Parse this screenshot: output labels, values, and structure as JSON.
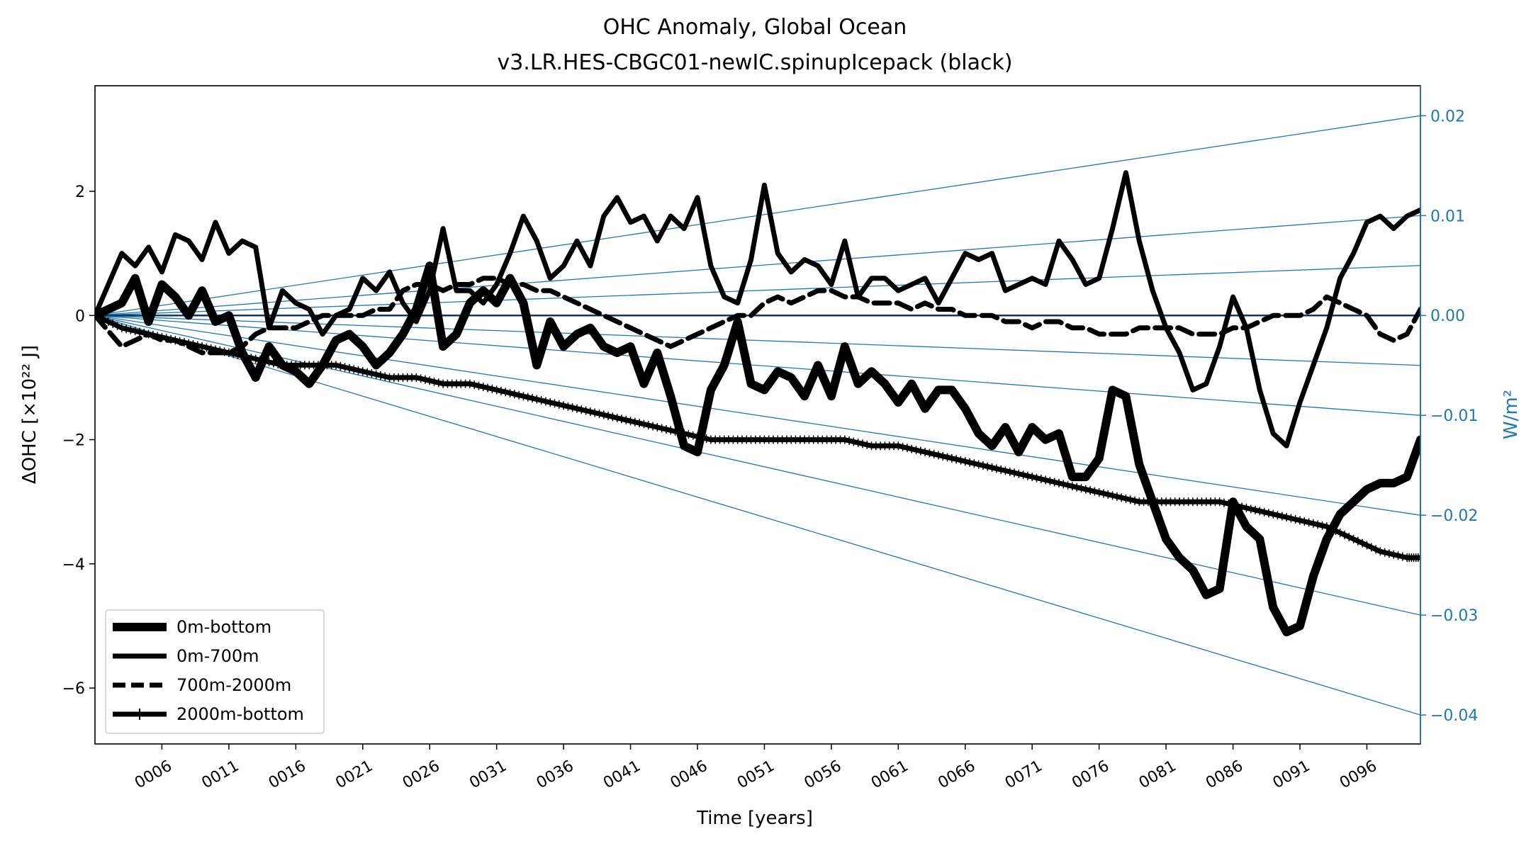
{
  "chart_data": {
    "type": "line",
    "title": "OHC Anomaly, Global Ocean",
    "subtitle": "v3.LR.HES-CBGC01-newIC.spinupIcepack (black)",
    "xlabel": "Time [years]",
    "ylabel": "ΔOHC [×10²² J]",
    "ylabel_right": "W/m²",
    "xlim": [
      1,
      100
    ],
    "ylim": [
      -6.9,
      3.7
    ],
    "ylim_right": [
      -0.0429,
      0.023
    ],
    "x_ticks": [
      6,
      11,
      16,
      21,
      26,
      31,
      36,
      41,
      46,
      51,
      56,
      61,
      66,
      71,
      76,
      81,
      86,
      91,
      96
    ],
    "x_tick_labels": [
      "0006",
      "0011",
      "0016",
      "0021",
      "0026",
      "0031",
      "0036",
      "0041",
      "0046",
      "0051",
      "0056",
      "0061",
      "0066",
      "0071",
      "0076",
      "0081",
      "0086",
      "0091",
      "0096"
    ],
    "y_ticks": [
      -6,
      -4,
      -2,
      0,
      2
    ],
    "y_tick_labels": [
      "−6",
      "−4",
      "−2",
      "0",
      "2"
    ],
    "y_right_ticks": [
      -0.04,
      -0.03,
      -0.02,
      -0.01,
      0.0,
      0.01,
      0.02
    ],
    "y_right_tick_labels": [
      "−0.04",
      "−0.03",
      "−0.02",
      "−0.01",
      "0.00",
      "0.01",
      "0.02"
    ],
    "reference_lines_Wm2": [
      0.02,
      0.01,
      0.005,
      -0.005,
      -0.01,
      -0.02,
      -0.03,
      -0.04
    ],
    "grid": false,
    "legend_position": "lower-left",
    "series": [
      {
        "name": "0m-bottom",
        "style": "solid-thick",
        "x": [
          1,
          3,
          4,
          5,
          6,
          7,
          8,
          9,
          10,
          11,
          12,
          13,
          14,
          15,
          16,
          17,
          18,
          19,
          20,
          21,
          22,
          23,
          24,
          25,
          26,
          27,
          28,
          29,
          30,
          31,
          32,
          33,
          34,
          35,
          36,
          37,
          38,
          39,
          40,
          41,
          42,
          43,
          44,
          45,
          46,
          47,
          48,
          49,
          50,
          51,
          52,
          53,
          54,
          55,
          56,
          57,
          58,
          59,
          60,
          61,
          62,
          63,
          64,
          65,
          66,
          67,
          68,
          69,
          70,
          71,
          72,
          73,
          74,
          75,
          76,
          77,
          78,
          79,
          80,
          81,
          82,
          83,
          84,
          85,
          86,
          87,
          88,
          89,
          90,
          91,
          92,
          93,
          94,
          95,
          96,
          97,
          98,
          99,
          100
        ],
        "y": [
          0.0,
          0.2,
          0.6,
          -0.1,
          0.5,
          0.3,
          0.0,
          0.4,
          -0.1,
          0.0,
          -0.6,
          -1.0,
          -0.5,
          -0.8,
          -0.9,
          -1.1,
          -0.8,
          -0.4,
          -0.3,
          -0.5,
          -0.8,
          -0.6,
          -0.3,
          0.1,
          0.8,
          -0.5,
          -0.3,
          0.2,
          0.4,
          0.2,
          0.6,
          0.2,
          -0.8,
          -0.1,
          -0.5,
          -0.3,
          -0.2,
          -0.5,
          -0.6,
          -0.5,
          -1.1,
          -0.6,
          -1.3,
          -2.1,
          -2.2,
          -1.2,
          -0.8,
          -0.1,
          -1.1,
          -1.2,
          -0.9,
          -1.0,
          -1.3,
          -0.8,
          -1.3,
          -0.5,
          -1.1,
          -0.9,
          -1.1,
          -1.4,
          -1.1,
          -1.5,
          -1.2,
          -1.2,
          -1.5,
          -1.9,
          -2.1,
          -1.8,
          -2.2,
          -1.8,
          -2.0,
          -1.9,
          -2.6,
          -2.6,
          -2.3,
          -1.2,
          -1.3,
          -2.4,
          -3.0,
          -3.6,
          -3.9,
          -4.1,
          -4.5,
          -4.4,
          -3.0,
          -3.4,
          -3.6,
          -4.7,
          -5.1,
          -5.0,
          -4.2,
          -3.6,
          -3.2,
          -3.0,
          -2.8,
          -2.7,
          -2.7,
          -2.6,
          -2.0
        ]
      },
      {
        "name": "0m-700m",
        "style": "solid",
        "x": [
          1,
          3,
          4,
          5,
          6,
          7,
          8,
          9,
          10,
          11,
          12,
          13,
          14,
          15,
          16,
          17,
          18,
          19,
          20,
          21,
          22,
          23,
          24,
          25,
          26,
          27,
          28,
          29,
          30,
          31,
          32,
          33,
          34,
          35,
          36,
          37,
          38,
          39,
          40,
          41,
          42,
          43,
          44,
          45,
          46,
          47,
          48,
          49,
          50,
          51,
          52,
          53,
          54,
          55,
          56,
          57,
          58,
          59,
          60,
          61,
          62,
          63,
          64,
          65,
          66,
          67,
          68,
          69,
          70,
          71,
          72,
          73,
          74,
          75,
          76,
          77,
          78,
          79,
          80,
          81,
          82,
          83,
          84,
          85,
          86,
          87,
          88,
          89,
          90,
          91,
          92,
          93,
          94,
          95,
          96,
          97,
          98,
          99,
          100
        ],
        "y": [
          0.0,
          1.0,
          0.8,
          1.1,
          0.7,
          1.3,
          1.2,
          0.9,
          1.5,
          1.0,
          1.2,
          1.1,
          -0.2,
          0.4,
          0.2,
          0.1,
          -0.3,
          0.0,
          0.1,
          0.6,
          0.4,
          0.7,
          0.2,
          -0.1,
          0.4,
          1.4,
          0.4,
          0.4,
          0.2,
          0.5,
          1.0,
          1.6,
          1.2,
          0.6,
          0.8,
          1.2,
          0.8,
          1.6,
          1.9,
          1.5,
          1.6,
          1.2,
          1.6,
          1.4,
          1.9,
          0.8,
          0.3,
          0.2,
          0.9,
          2.1,
          1.0,
          0.7,
          0.9,
          0.8,
          0.5,
          1.2,
          0.3,
          0.6,
          0.6,
          0.4,
          0.5,
          0.6,
          0.2,
          0.6,
          1.0,
          0.9,
          1.0,
          0.4,
          0.5,
          0.6,
          0.5,
          1.2,
          0.9,
          0.5,
          0.6,
          1.4,
          2.3,
          1.2,
          0.4,
          -0.2,
          -0.6,
          -1.2,
          -1.1,
          -0.5,
          0.3,
          -0.2,
          -1.2,
          -1.9,
          -2.1,
          -1.4,
          -0.8,
          -0.2,
          0.6,
          1.0,
          1.5,
          1.6,
          1.4,
          1.6,
          1.7
        ]
      },
      {
        "name": "700m-2000m",
        "style": "dashed",
        "x": [
          1,
          3,
          4,
          5,
          6,
          7,
          8,
          9,
          10,
          11,
          12,
          13,
          14,
          15,
          16,
          17,
          18,
          19,
          20,
          21,
          22,
          23,
          24,
          25,
          26,
          27,
          28,
          29,
          30,
          31,
          32,
          33,
          34,
          35,
          36,
          37,
          38,
          39,
          40,
          41,
          42,
          43,
          44,
          45,
          46,
          47,
          48,
          49,
          50,
          51,
          52,
          53,
          54,
          55,
          56,
          57,
          58,
          59,
          60,
          61,
          62,
          63,
          64,
          65,
          66,
          67,
          68,
          69,
          70,
          71,
          72,
          73,
          74,
          75,
          76,
          77,
          78,
          79,
          80,
          81,
          82,
          83,
          84,
          85,
          86,
          87,
          88,
          89,
          90,
          91,
          92,
          93,
          94,
          95,
          96,
          97,
          98,
          99,
          100
        ],
        "y": [
          0.0,
          -0.5,
          -0.4,
          -0.3,
          -0.4,
          -0.4,
          -0.5,
          -0.6,
          -0.6,
          -0.6,
          -0.5,
          -0.3,
          -0.2,
          -0.2,
          -0.2,
          -0.1,
          0.0,
          0.0,
          0.0,
          0.0,
          0.1,
          0.1,
          0.4,
          0.5,
          0.5,
          0.4,
          0.5,
          0.5,
          0.6,
          0.6,
          0.5,
          0.5,
          0.4,
          0.4,
          0.3,
          0.2,
          0.1,
          0.0,
          -0.1,
          -0.2,
          -0.3,
          -0.4,
          -0.5,
          -0.4,
          -0.3,
          -0.2,
          -0.1,
          0.0,
          0.0,
          0.2,
          0.3,
          0.2,
          0.3,
          0.4,
          0.4,
          0.3,
          0.3,
          0.2,
          0.2,
          0.2,
          0.1,
          0.2,
          0.1,
          0.1,
          0.0,
          0.0,
          0.0,
          -0.1,
          -0.1,
          -0.2,
          -0.1,
          -0.1,
          -0.2,
          -0.2,
          -0.3,
          -0.3,
          -0.3,
          -0.2,
          -0.2,
          -0.2,
          -0.2,
          -0.3,
          -0.3,
          -0.3,
          -0.2,
          -0.2,
          -0.1,
          0.0,
          0.0,
          0.0,
          0.1,
          0.3,
          0.2,
          0.1,
          0.0,
          -0.3,
          -0.4,
          -0.3,
          0.1
        ]
      },
      {
        "name": "2000m-bottom",
        "style": "solid-plus-markers",
        "x": [
          1,
          3,
          5,
          7,
          9,
          11,
          13,
          15,
          17,
          19,
          21,
          23,
          25,
          27,
          29,
          31,
          33,
          35,
          37,
          39,
          41,
          43,
          45,
          47,
          49,
          51,
          53,
          55,
          57,
          59,
          61,
          63,
          65,
          67,
          69,
          71,
          73,
          75,
          77,
          79,
          81,
          83,
          85,
          87,
          89,
          91,
          93,
          95,
          97,
          99,
          100
        ],
        "y": [
          0.0,
          -0.2,
          -0.3,
          -0.4,
          -0.5,
          -0.6,
          -0.7,
          -0.8,
          -0.8,
          -0.8,
          -0.9,
          -1.0,
          -1.0,
          -1.1,
          -1.1,
          -1.2,
          -1.3,
          -1.4,
          -1.5,
          -1.6,
          -1.7,
          -1.8,
          -1.9,
          -2.0,
          -2.0,
          -2.0,
          -2.0,
          -2.0,
          -2.0,
          -2.1,
          -2.1,
          -2.2,
          -2.3,
          -2.4,
          -2.5,
          -2.6,
          -2.7,
          -2.8,
          -2.9,
          -3.0,
          -3.0,
          -3.0,
          -3.0,
          -3.1,
          -3.2,
          -3.3,
          -3.4,
          -3.6,
          -3.8,
          -3.9,
          -3.9
        ]
      }
    ]
  }
}
